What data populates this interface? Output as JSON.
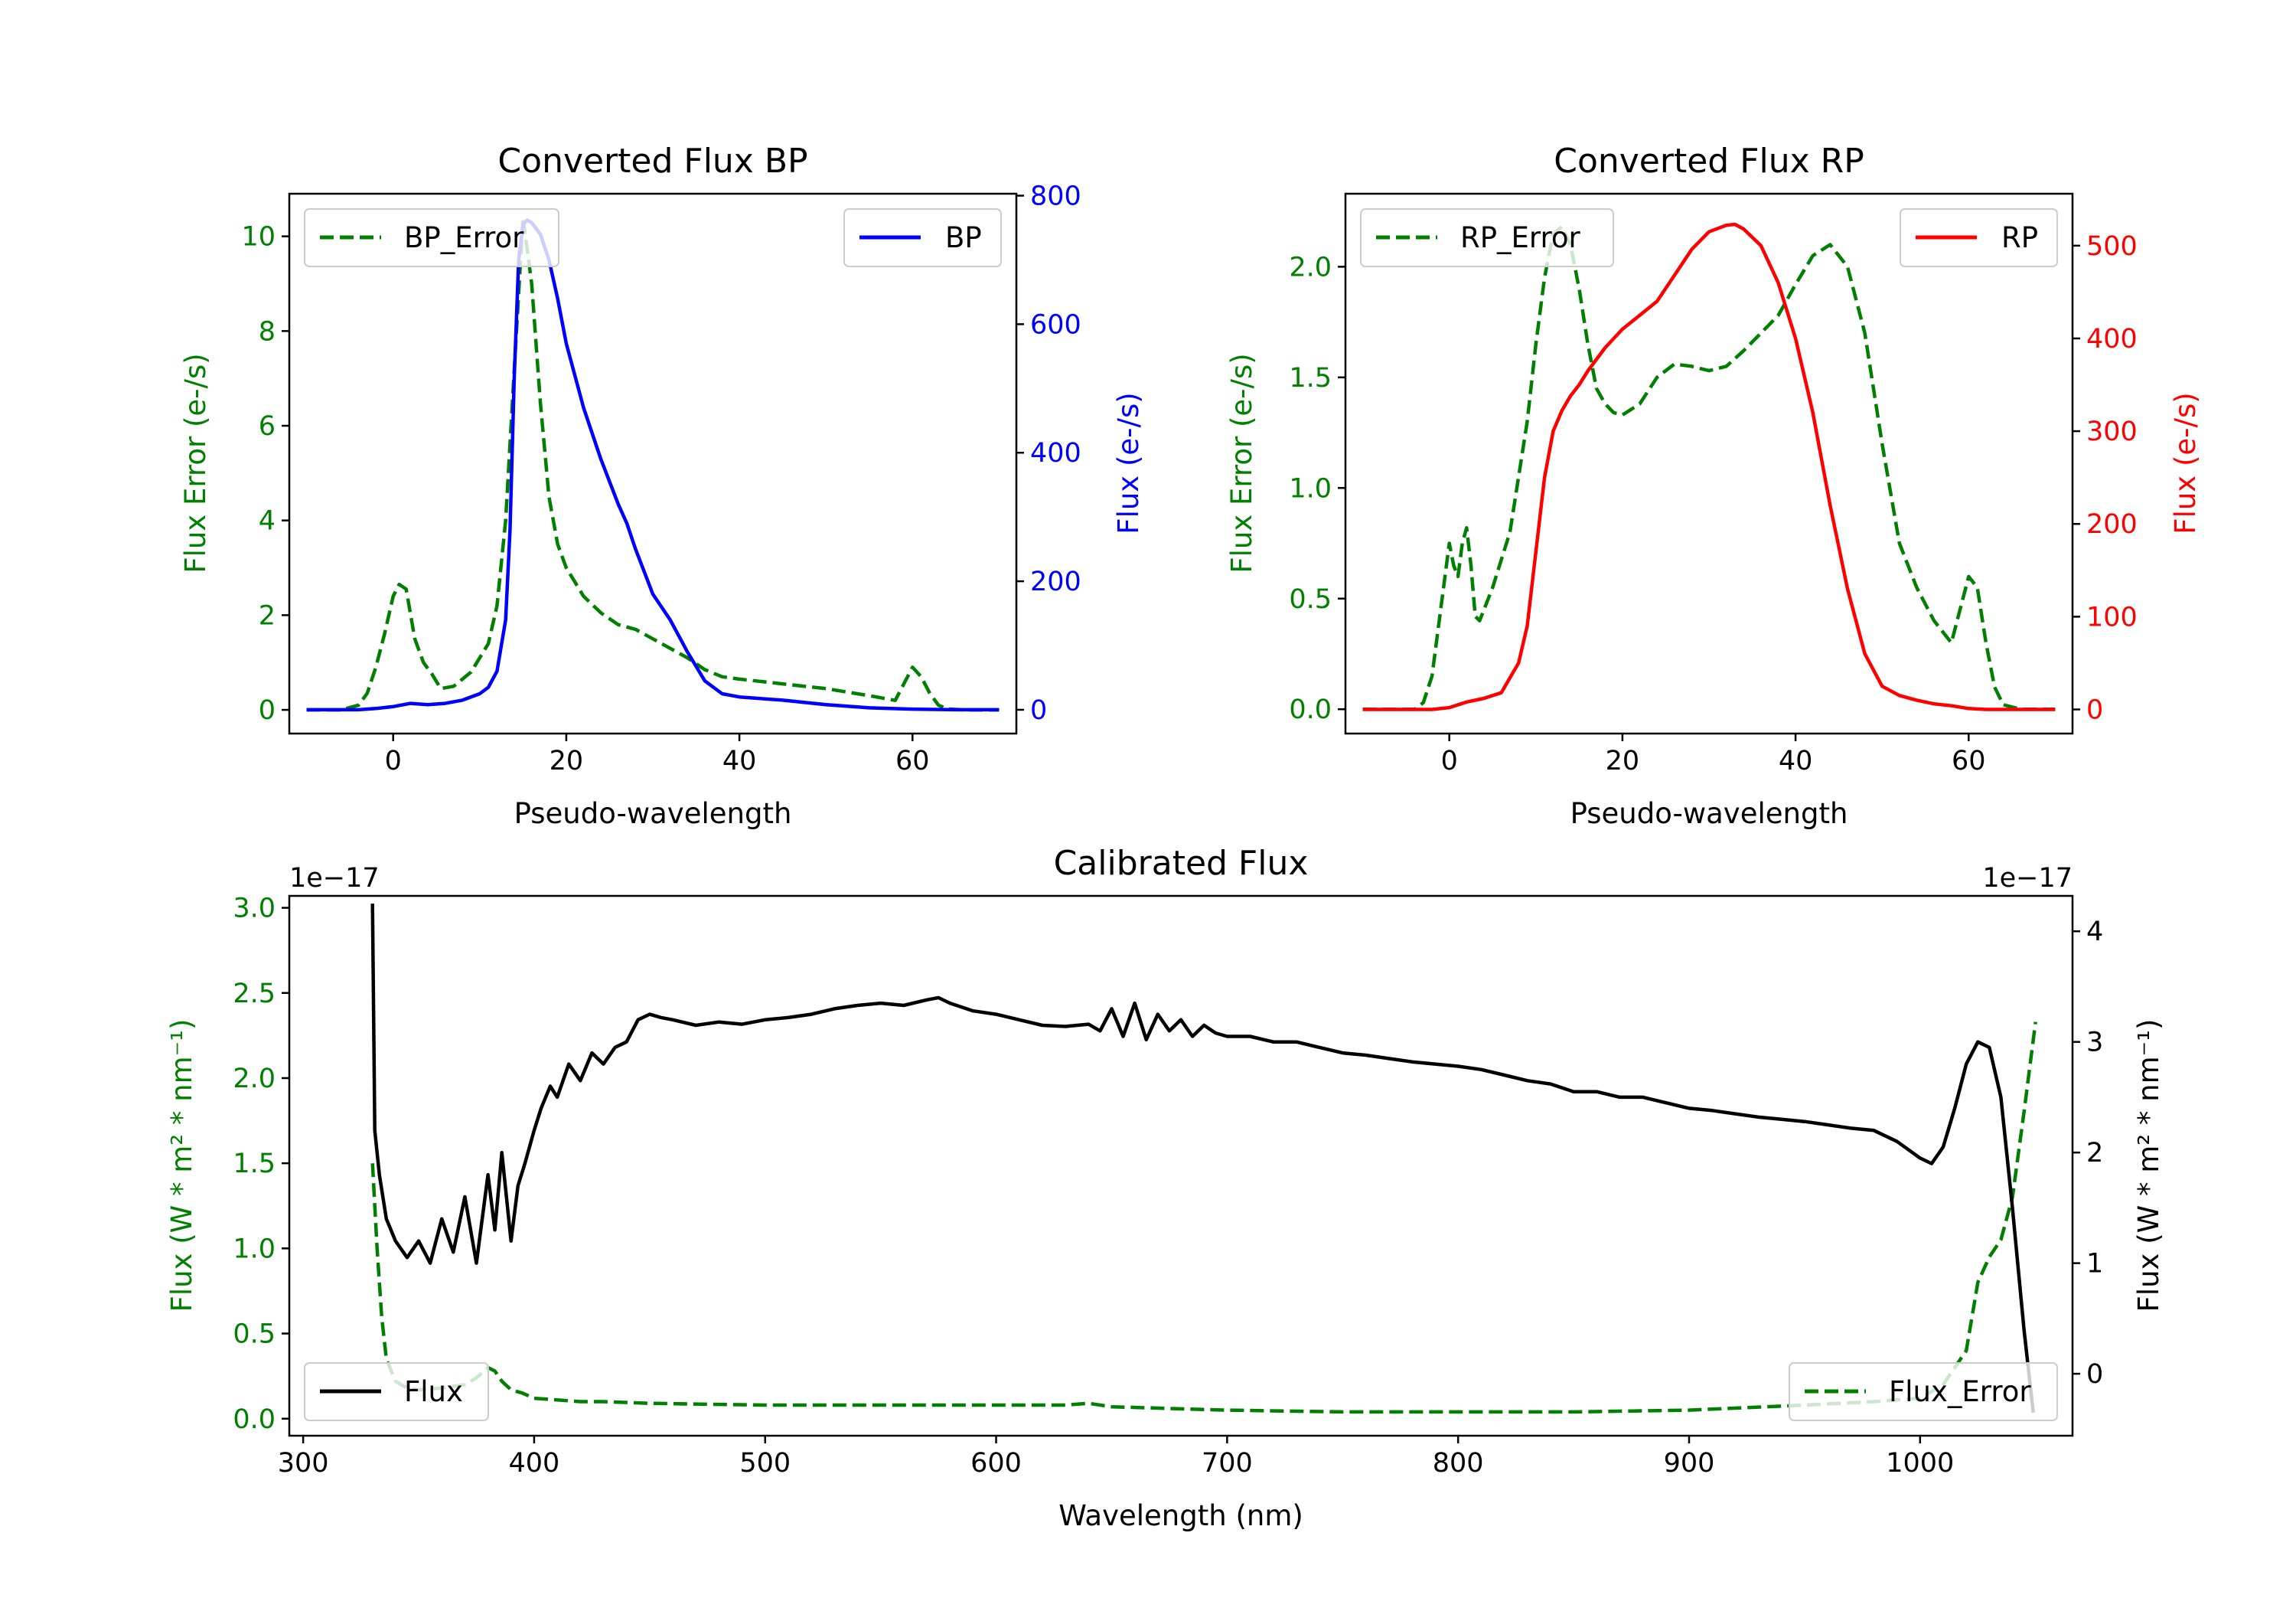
{
  "chart_data": [
    {
      "type": "line",
      "title": "Converted Flux BP",
      "xlabel": "Pseudo-wavelength",
      "ylabel_left": "Flux Error (e-/s)",
      "ylabel_right": "Flux (e-/s)",
      "xlim": [
        -12,
        72
      ],
      "ylim_left": [
        -0.5,
        10.9
      ],
      "ylim_right": [
        -37,
        803
      ],
      "xticks": [
        "0",
        "20",
        "40",
        "60"
      ],
      "yticks_left": [
        "0",
        "2",
        "4",
        "6",
        "8",
        "10"
      ],
      "yticks_right": [
        "0",
        "200",
        "400",
        "600",
        "800"
      ],
      "colors": {
        "error": "#007f00",
        "flux": "#0000ff",
        "left_axis": "#007f00",
        "right_axis": "#0000ff"
      },
      "series": [
        {
          "name": "BP_Error",
          "axis": "left",
          "style": "dashed",
          "x": [
            -10,
            -6,
            -4,
            -3,
            -2,
            -1,
            0,
            0.7,
            1.5,
            2.5,
            3.5,
            4.5,
            5.5,
            7,
            9,
            11,
            12,
            13,
            14,
            15,
            16,
            17,
            18,
            19,
            20,
            21,
            22,
            24,
            26,
            28,
            30,
            32,
            34,
            36,
            38,
            40,
            45,
            50,
            55,
            58,
            59,
            60,
            61,
            62,
            63,
            64,
            66,
            70
          ],
          "values": [
            0,
            0,
            0.1,
            0.35,
            0.9,
            1.6,
            2.4,
            2.65,
            2.55,
            1.5,
            1.0,
            0.75,
            0.45,
            0.5,
            0.8,
            1.4,
            2.2,
            4.0,
            7.2,
            10.4,
            9.0,
            6.5,
            4.5,
            3.5,
            3.0,
            2.7,
            2.4,
            2.05,
            1.8,
            1.7,
            1.5,
            1.3,
            1.1,
            0.85,
            0.7,
            0.65,
            0.55,
            0.45,
            0.3,
            0.2,
            0.55,
            0.9,
            0.7,
            0.35,
            0.1,
            0.02,
            0,
            0
          ]
        },
        {
          "name": "BP",
          "axis": "right",
          "style": "solid",
          "x": [
            -10,
            -4,
            -2,
            0,
            2,
            4,
            6,
            8,
            10,
            11,
            12,
            13,
            13.5,
            14,
            14.5,
            15,
            15.5,
            16,
            17,
            18,
            19,
            20,
            22,
            24,
            26,
            27,
            28,
            30,
            32,
            34,
            36,
            38,
            40,
            45,
            50,
            55,
            60,
            65,
            70
          ],
          "values": [
            0,
            0,
            2,
            5,
            10,
            8,
            10,
            15,
            25,
            35,
            60,
            140,
            280,
            520,
            700,
            755,
            762,
            758,
            740,
            700,
            640,
            570,
            470,
            390,
            320,
            290,
            250,
            180,
            140,
            90,
            45,
            25,
            20,
            15,
            8,
            3,
            1,
            0,
            0
          ]
        }
      ],
      "legend": [
        {
          "label": "BP_Error",
          "location": "upper-left"
        },
        {
          "label": "BP",
          "location": "upper-right"
        }
      ]
    },
    {
      "type": "line",
      "title": "Converted Flux RP",
      "xlabel": "Pseudo-wavelength",
      "ylabel_left": "Flux Error (e-/s)",
      "ylabel_right": "Flux (e-/s)",
      "xlim": [
        -12,
        72
      ],
      "ylim_left": [
        -0.11,
        2.33
      ],
      "ylim_right": [
        -26,
        556
      ],
      "xticks": [
        "0",
        "20",
        "40",
        "60"
      ],
      "yticks_left": [
        "0.0",
        "0.5",
        "1.0",
        "1.5",
        "2.0"
      ],
      "yticks_right": [
        "0",
        "100",
        "200",
        "300",
        "400",
        "500"
      ],
      "colors": {
        "error": "#007f00",
        "flux": "#ff0000",
        "left_axis": "#007f00",
        "right_axis": "#ff0000"
      },
      "series": [
        {
          "name": "RP_Error",
          "axis": "left",
          "style": "dashed",
          "x": [
            -10,
            -4,
            -3,
            -2,
            -1,
            0,
            0.5,
            1,
            1.5,
            2,
            2.5,
            3,
            3.5,
            4,
            5,
            7,
            9,
            10,
            11,
            12,
            13,
            14,
            15,
            16,
            17,
            18,
            19,
            20,
            22,
            24,
            26,
            28,
            30,
            32,
            34,
            36,
            38,
            40,
            42,
            44,
            46,
            48,
            50,
            52,
            54,
            56,
            57,
            58,
            59,
            60,
            61,
            62,
            63,
            64,
            66,
            70
          ],
          "values": [
            0,
            0,
            0.03,
            0.15,
            0.45,
            0.75,
            0.65,
            0.6,
            0.75,
            0.82,
            0.65,
            0.42,
            0.4,
            0.45,
            0.55,
            0.8,
            1.3,
            1.65,
            1.95,
            2.15,
            2.18,
            2.1,
            1.9,
            1.65,
            1.45,
            1.38,
            1.34,
            1.33,
            1.38,
            1.5,
            1.56,
            1.55,
            1.53,
            1.55,
            1.62,
            1.7,
            1.78,
            1.92,
            2.05,
            2.1,
            2.0,
            1.7,
            1.2,
            0.75,
            0.55,
            0.4,
            0.35,
            0.3,
            0.45,
            0.6,
            0.55,
            0.3,
            0.1,
            0.02,
            0,
            0
          ]
        },
        {
          "name": "RP",
          "axis": "right",
          "style": "solid",
          "x": [
            -10,
            -2,
            0,
            2,
            4,
            6,
            8,
            9,
            10,
            11,
            12,
            13,
            14,
            15,
            16,
            18,
            20,
            22,
            24,
            26,
            28,
            30,
            32,
            33,
            34,
            36,
            38,
            40,
            42,
            44,
            46,
            48,
            50,
            52,
            54,
            56,
            58,
            60,
            62,
            70
          ],
          "values": [
            0,
            0,
            2,
            8,
            12,
            18,
            50,
            90,
            170,
            250,
            300,
            322,
            338,
            350,
            365,
            390,
            410,
            425,
            440,
            468,
            496,
            515,
            522,
            523,
            518,
            500,
            460,
            400,
            320,
            220,
            130,
            60,
            25,
            15,
            10,
            6,
            4,
            1,
            0,
            0
          ]
        }
      ],
      "legend": [
        {
          "label": "RP_Error",
          "location": "upper-left"
        },
        {
          "label": "RP",
          "location": "upper-right"
        }
      ]
    },
    {
      "type": "line",
      "title": "Calibrated Flux",
      "xlabel": "Wavelength (nm)",
      "ylabel_left": "Flux (W * m² * nm⁻¹)",
      "ylabel_right": "Flux (W * m² * nm⁻¹)",
      "offset_left": "1e−17",
      "offset_right": "1e−17",
      "xlim": [
        294,
        1066
      ],
      "ylim_left": [
        -0.1,
        3.07
      ],
      "ylim_right": [
        -0.56,
        4.32
      ],
      "xticks": [
        "300",
        "400",
        "500",
        "600",
        "700",
        "800",
        "900",
        "1000"
      ],
      "yticks_left": [
        "0.0",
        "0.5",
        "1.0",
        "1.5",
        "2.0",
        "2.5",
        "3.0"
      ],
      "yticks_right": [
        "0",
        "1",
        "2",
        "3",
        "4"
      ],
      "colors": {
        "error": "#007f00",
        "flux": "#000000",
        "left_axis": "#007f00",
        "right_axis": "#000000"
      },
      "series": [
        {
          "name": "Flux_Error",
          "axis": "left",
          "style": "dashed",
          "x": [
            330,
            332,
            334,
            336,
            340,
            345,
            350,
            360,
            370,
            375,
            380,
            383,
            386,
            390,
            395,
            400,
            410,
            420,
            430,
            450,
            500,
            550,
            600,
            630,
            640,
            650,
            700,
            750,
            800,
            850,
            900,
            950,
            980,
            1000,
            1010,
            1020,
            1025,
            1030,
            1035,
            1040,
            1045,
            1050
          ],
          "values": [
            1.5,
            1.0,
            0.6,
            0.35,
            0.22,
            0.18,
            0.17,
            0.18,
            0.2,
            0.24,
            0.3,
            0.28,
            0.22,
            0.17,
            0.15,
            0.12,
            0.11,
            0.1,
            0.1,
            0.09,
            0.08,
            0.08,
            0.08,
            0.08,
            0.09,
            0.07,
            0.05,
            0.04,
            0.04,
            0.04,
            0.05,
            0.08,
            0.1,
            0.12,
            0.2,
            0.4,
            0.8,
            0.95,
            1.05,
            1.3,
            1.8,
            2.33
          ]
        },
        {
          "name": "Flux",
          "axis": "right",
          "style": "solid",
          "x": [
            330,
            331,
            333,
            336,
            340,
            345,
            350,
            355,
            360,
            365,
            370,
            375,
            380,
            383,
            386,
            390,
            393,
            396,
            400,
            403,
            407,
            410,
            415,
            420,
            425,
            430,
            435,
            440,
            445,
            450,
            455,
            460,
            470,
            480,
            490,
            500,
            510,
            520,
            530,
            540,
            550,
            560,
            570,
            575,
            580,
            590,
            600,
            610,
            620,
            630,
            640,
            645,
            650,
            655,
            660,
            665,
            670,
            675,
            680,
            685,
            690,
            695,
            700,
            710,
            720,
            730,
            740,
            750,
            760,
            770,
            780,
            790,
            800,
            810,
            820,
            830,
            840,
            850,
            860,
            870,
            880,
            890,
            900,
            910,
            920,
            930,
            940,
            950,
            960,
            970,
            980,
            990,
            1000,
            1005,
            1010,
            1015,
            1020,
            1025,
            1030,
            1035,
            1040,
            1045,
            1049
          ],
          "values": [
            4.25,
            2.2,
            1.8,
            1.4,
            1.2,
            1.05,
            1.2,
            1.0,
            1.4,
            1.1,
            1.6,
            1.0,
            1.8,
            1.3,
            2.0,
            1.2,
            1.7,
            1.9,
            2.2,
            2.4,
            2.6,
            2.5,
            2.8,
            2.65,
            2.9,
            2.8,
            2.95,
            3.0,
            3.2,
            3.25,
            3.22,
            3.2,
            3.15,
            3.18,
            3.16,
            3.2,
            3.22,
            3.25,
            3.3,
            3.33,
            3.35,
            3.33,
            3.38,
            3.4,
            3.35,
            3.28,
            3.25,
            3.2,
            3.15,
            3.14,
            3.16,
            3.1,
            3.3,
            3.05,
            3.35,
            3.02,
            3.25,
            3.1,
            3.2,
            3.05,
            3.15,
            3.08,
            3.05,
            3.05,
            3.0,
            3.0,
            2.95,
            2.9,
            2.88,
            2.85,
            2.82,
            2.8,
            2.78,
            2.75,
            2.7,
            2.65,
            2.62,
            2.55,
            2.55,
            2.5,
            2.5,
            2.45,
            2.4,
            2.38,
            2.35,
            2.32,
            2.3,
            2.28,
            2.25,
            2.22,
            2.2,
            2.1,
            1.95,
            1.9,
            2.05,
            2.4,
            2.8,
            3.0,
            2.95,
            2.5,
            1.5,
            0.4,
            -0.35
          ]
        }
      ],
      "legend": [
        {
          "label": "Flux",
          "location": "lower-left"
        },
        {
          "label": "Flux_Error",
          "location": "lower-right"
        }
      ]
    }
  ]
}
